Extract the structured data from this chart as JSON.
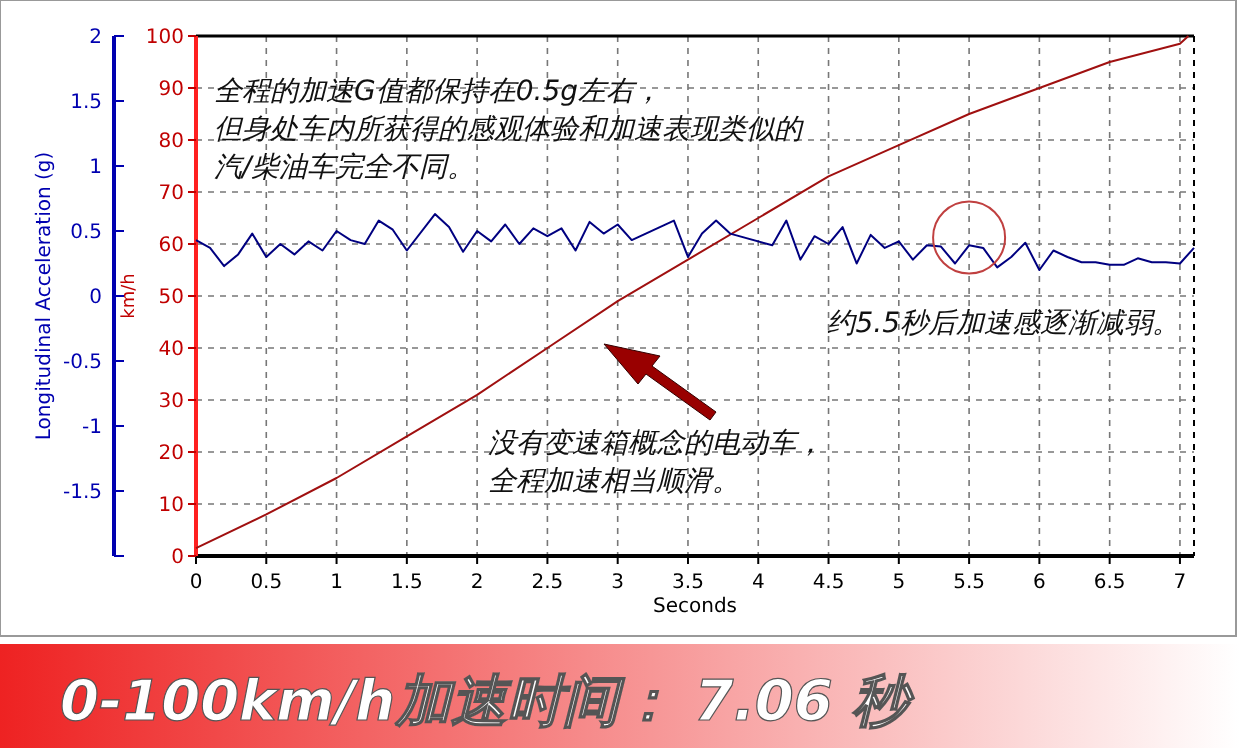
{
  "chart_data": {
    "type": "line",
    "title": "0-100km/h加速时间： 7.06 秒",
    "xlabel": "Seconds",
    "ylabel": "km/h",
    "y2label": "Longitudinal Acceleration (g)",
    "annotations": [
      "全程的加速G值都保持在0.5g左右，",
      "但身处车内所获得的感观体验和加速表现类似的",
      "汽/柴油车完全不同。",
      "约5.5秒后加速感逐渐减弱。",
      "没有变速箱概念的电动车，",
      "全程加速相当顺滑。"
    ],
    "xlim": [
      0,
      7.1
    ],
    "xticks": [
      0,
      0.5,
      1,
      1.5,
      2,
      2.5,
      3,
      3.5,
      4,
      4.5,
      5,
      5.5,
      6,
      6.5,
      7
    ],
    "ylim": [
      0,
      100
    ],
    "yticks": [
      0,
      10,
      20,
      30,
      40,
      50,
      60,
      70,
      80,
      90,
      100
    ],
    "y2lim": [
      -2,
      2
    ],
    "y2ticks": [
      {
        "value": -2,
        "label": null
      },
      -1.5,
      -1,
      -0.5,
      0,
      0.5,
      1,
      1.5,
      2
    ],
    "grid": true,
    "series": [
      {
        "color": "#a01010",
        "x": [
          0,
          0.5,
          1,
          1.5,
          2,
          2.5,
          3,
          3.5,
          4,
          4.5,
          5,
          5.5,
          6,
          6.5,
          7,
          7.06
        ],
        "values": [
          1.5,
          8,
          15,
          23,
          31,
          40,
          49,
          57,
          65,
          73,
          79,
          85,
          90,
          95,
          98.5,
          100
        ]
      },
      {
        "color": "#000080",
        "axis": "y2",
        "x": [
          0,
          0.1,
          0.2,
          0.3,
          0.4,
          0.5,
          0.6,
          0.7,
          0.8,
          0.9,
          1,
          1.1,
          1.2,
          1.3,
          1.4,
          1.5,
          1.7,
          1.8,
          1.9,
          2,
          2.1,
          2.2,
          2.3,
          2.4,
          2.5,
          2.6,
          2.7,
          2.8,
          2.9,
          3,
          3.1,
          3.3,
          3.4,
          3.5,
          3.6,
          3.7,
          3.8,
          4.1,
          4.2,
          4.3,
          4.4,
          4.5,
          4.6,
          4.7,
          4.8,
          4.9,
          5,
          5.1,
          5.2,
          5.3,
          5.4,
          5.5,
          5.6,
          5.7,
          5.8,
          5.9,
          6,
          6.1,
          6.2,
          6.3,
          6.4,
          6.5,
          6.6,
          6.7,
          6.8,
          6.9,
          7,
          7.1
        ],
        "values": [
          0.43,
          0.37,
          0.23,
          0.32,
          0.48,
          0.3,
          0.4,
          0.32,
          0.42,
          0.35,
          0.5,
          0.43,
          0.4,
          0.58,
          0.51,
          0.35,
          0.63,
          0.53,
          0.34,
          0.5,
          0.42,
          0.55,
          0.4,
          0.52,
          0.46,
          0.52,
          0.35,
          0.57,
          0.48,
          0.55,
          0.43,
          0.53,
          0.58,
          0.3,
          0.48,
          0.58,
          0.48,
          0.39,
          0.58,
          0.28,
          0.46,
          0.4,
          0.53,
          0.25,
          0.47,
          0.37,
          0.42,
          0.28,
          0.39,
          0.38,
          0.25,
          0.39,
          0.37,
          0.22,
          0.3,
          0.41,
          0.2,
          0.35,
          0.3,
          0.26,
          0.26,
          0.24,
          0.24,
          0.29,
          0.26,
          0.26,
          0.25,
          0.37
        ]
      }
    ]
  }
}
